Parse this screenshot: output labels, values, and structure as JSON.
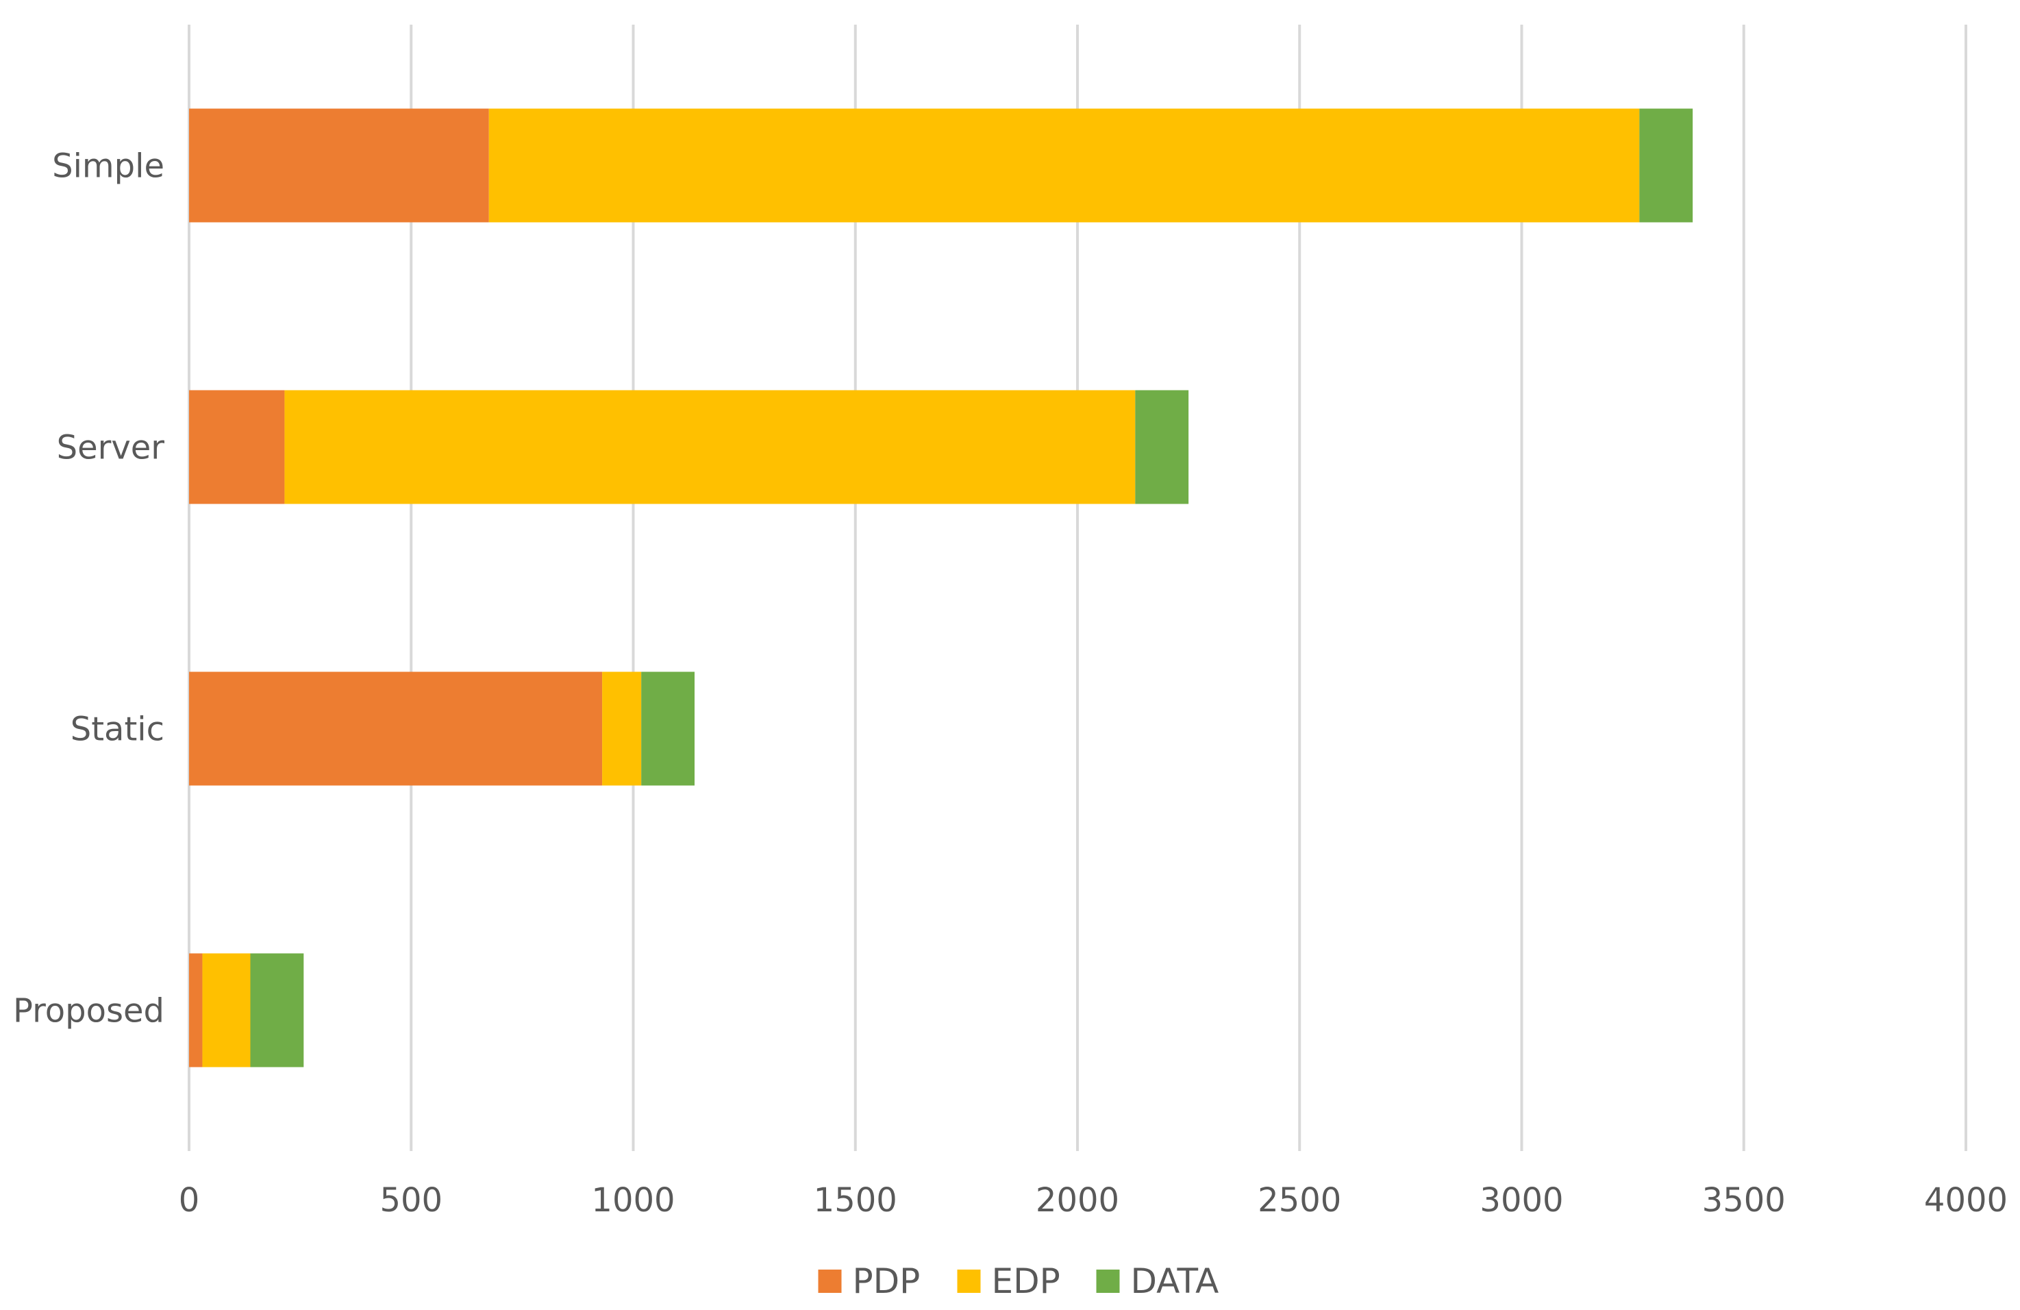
{
  "chart_data": {
    "type": "bar",
    "orientation": "horizontal",
    "stacked": true,
    "title": "",
    "xlabel": "",
    "ylabel": "",
    "categories": [
      "Simple",
      "Server",
      "Static",
      "Proposed"
    ],
    "series": [
      {
        "name": "PDP",
        "color": "#ED7D31",
        "values": [
          675,
          215,
          930,
          30
        ]
      },
      {
        "name": "EDP",
        "color": "#FFC000",
        "values": [
          2590,
          1915,
          88,
          108
        ]
      },
      {
        "name": "DATA",
        "color": "#70AD47",
        "values": [
          120,
          120,
          120,
          120
        ]
      }
    ],
    "xlim": [
      0,
      4000
    ],
    "xticks": [
      "0",
      "500",
      "1000",
      "1500",
      "2000",
      "2500",
      "3000",
      "3500",
      "4000"
    ],
    "grid": "vertical",
    "legend_position": "bottom"
  }
}
